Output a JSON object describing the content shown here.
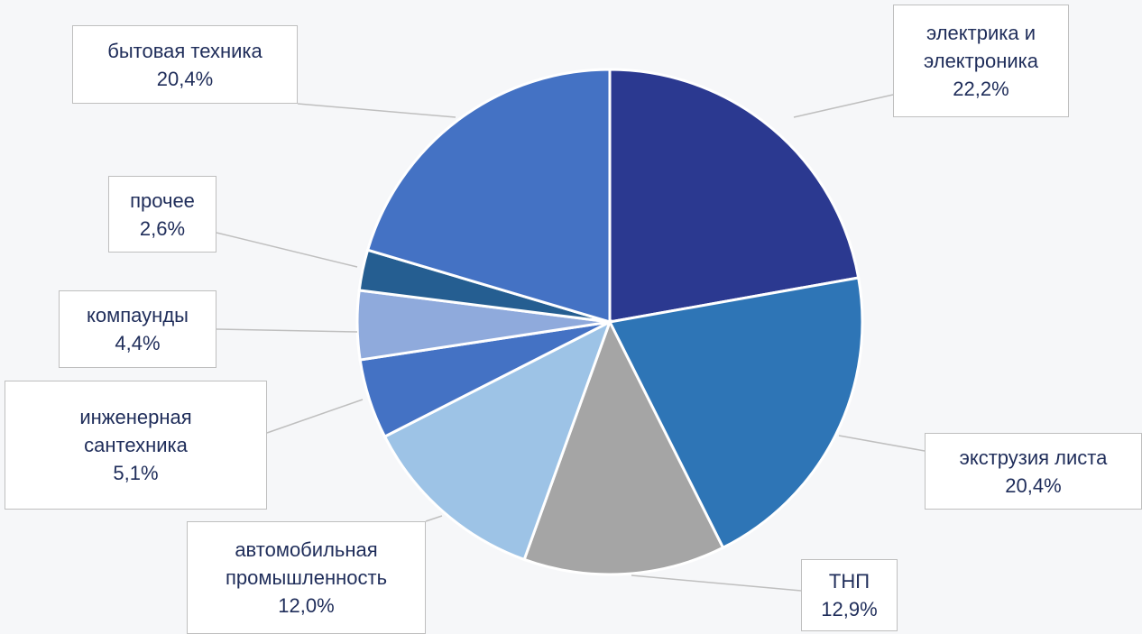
{
  "chart_data": {
    "type": "pie",
    "categories": [
      "электрика и\nэлектроника",
      "экструзия листа",
      "ТНП",
      "автомобильная\nпромышленность",
      "инженерная\nсантехника",
      "компаунды",
      "прочее",
      "бытовая техника"
    ],
    "values": [
      22.2,
      20.4,
      12.9,
      12.0,
      5.1,
      4.4,
      2.6,
      20.4
    ],
    "value_labels": [
      "22,2%",
      "20,4%",
      "12,9%",
      "12,0%",
      "5,1%",
      "4,4%",
      "2,6%",
      "20,4%"
    ],
    "colors": [
      "#2b3990",
      "#2e75b6",
      "#a5a5a5",
      "#9dc3e6",
      "#4472c4",
      "#8faadc",
      "#255e91",
      "#4472c4"
    ]
  }
}
